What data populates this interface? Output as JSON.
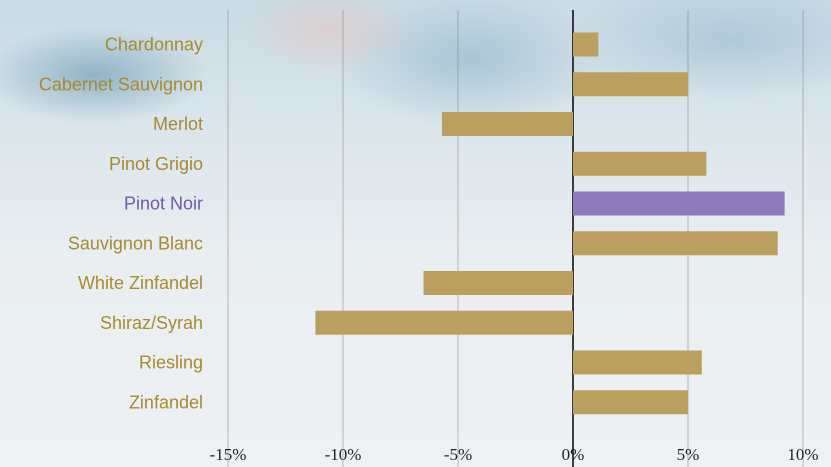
{
  "chart_data": {
    "type": "bar",
    "orientation": "horizontal",
    "categories": [
      "Chardonnay",
      "Cabernet Sauvignon",
      "Merlot",
      "Pinot Grigio",
      "Pinot Noir",
      "Sauvignon Blanc",
      "White Zinfandel",
      "Shiraz/Syrah",
      "Riesling",
      "Zinfandel"
    ],
    "values": [
      1.1,
      5.0,
      -5.7,
      5.8,
      9.2,
      8.9,
      -6.5,
      -11.2,
      5.6,
      5.0
    ],
    "highlight_category": "Pinot Noir",
    "xlim": [
      -15,
      10
    ],
    "x_ticks": [
      -15,
      -10,
      -5,
      0,
      5,
      10
    ],
    "x_tick_labels": [
      "-15%",
      "-10%",
      "-5%",
      "0%",
      "5%",
      "10%"
    ],
    "grid": "vertical",
    "colors": {
      "bar": "#bb9f5f",
      "highlight_bar": "#8f79bb",
      "label": "#a88a2e",
      "highlight_label": "#6e5aa6",
      "gridline": "#888888",
      "zero_line": "#111111",
      "tick_label": "#222222"
    }
  }
}
